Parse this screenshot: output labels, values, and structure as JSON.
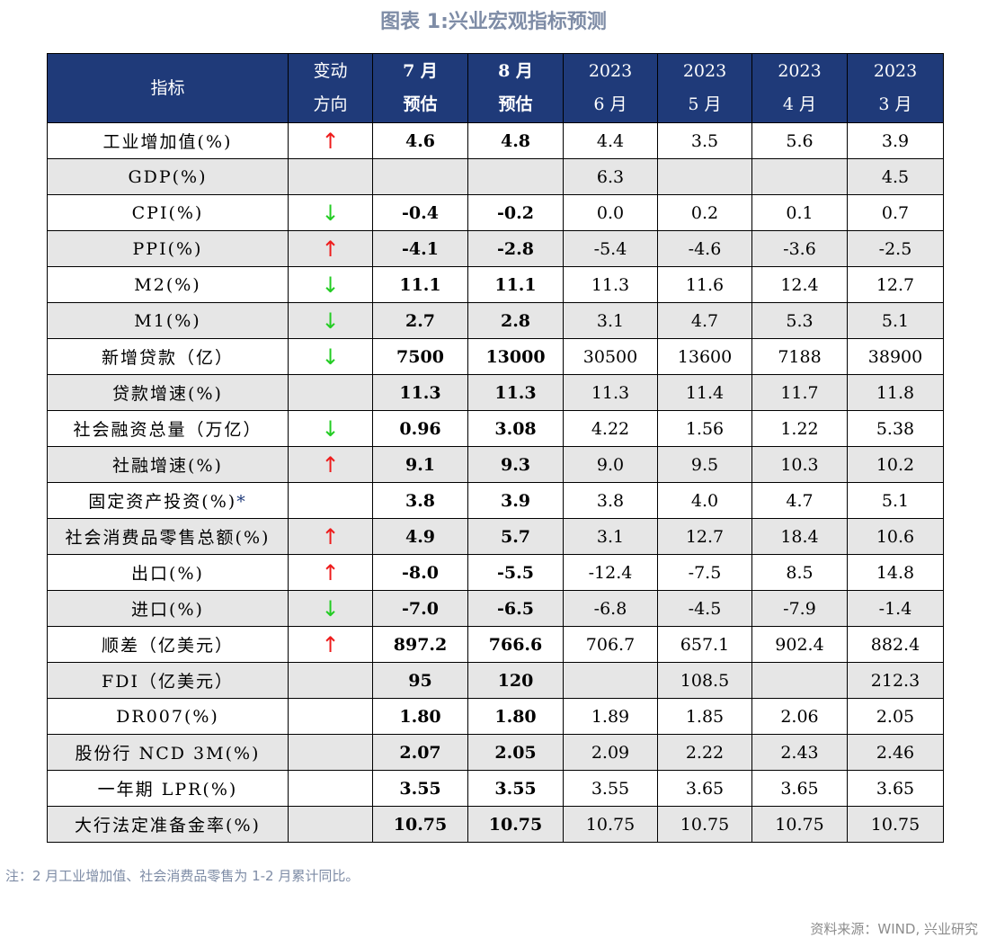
{
  "title": "图表 1:兴业宏观指标预测",
  "header": {
    "indicator": "指标",
    "change": [
      "变动",
      "方向"
    ],
    "jul_est": [
      "7 月",
      "预估"
    ],
    "aug_est": [
      "8 月",
      "预估"
    ],
    "jun_2023": [
      "2023",
      "6 月"
    ],
    "may_2023": [
      "2023",
      "5 月"
    ],
    "apr_2023": [
      "2023",
      "4 月"
    ],
    "mar_2023": [
      "2023",
      "3 月"
    ]
  },
  "colors": {
    "header_bg": "#1f3a79",
    "up_arrow": "#ee1c1c",
    "down_arrow": "#22cc22",
    "alt_row": "#e6e6e6"
  },
  "rows": [
    {
      "name": "工业增加值(%)",
      "dir": "up",
      "arrow": "↑",
      "jul": "4.6",
      "aug": "4.8",
      "jun": "4.4",
      "may": "3.5",
      "apr": "5.6",
      "mar": "3.9"
    },
    {
      "name": "GDP(%)",
      "dir": "",
      "arrow": "",
      "jul": "",
      "aug": "",
      "jun": "6.3",
      "may": "",
      "apr": "",
      "mar": "4.5"
    },
    {
      "name": "CPI(%)",
      "dir": "down",
      "arrow": "↓",
      "jul": "-0.4",
      "aug": "-0.2",
      "jun": "0.0",
      "may": "0.2",
      "apr": "0.1",
      "mar": "0.7"
    },
    {
      "name": "PPI(%)",
      "dir": "up",
      "arrow": "↑",
      "jul": "-4.1",
      "aug": "-2.8",
      "jun": "-5.4",
      "may": "-4.6",
      "apr": "-3.6",
      "mar": "-2.5"
    },
    {
      "name": "M2(%)",
      "dir": "down",
      "arrow": "↓",
      "jul": "11.1",
      "aug": "11.1",
      "jun": "11.3",
      "may": "11.6",
      "apr": "12.4",
      "mar": "12.7"
    },
    {
      "name": "M1(%)",
      "dir": "down",
      "arrow": "↓",
      "jul": "2.7",
      "aug": "2.8",
      "jun": "3.1",
      "may": "4.7",
      "apr": "5.3",
      "mar": "5.1"
    },
    {
      "name": "新增贷款（亿）",
      "dir": "down",
      "arrow": "↓",
      "jul": "7500",
      "aug": "13000",
      "jun": "30500",
      "may": "13600",
      "apr": "7188",
      "mar": "38900"
    },
    {
      "name": "贷款增速(%)",
      "dir": "",
      "arrow": "",
      "jul": "11.3",
      "aug": "11.3",
      "jun": "11.3",
      "may": "11.4",
      "apr": "11.7",
      "mar": "11.8"
    },
    {
      "name": "社会融资总量（万亿）",
      "dir": "down",
      "arrow": "↓",
      "jul": "0.96",
      "aug": "3.08",
      "jun": "4.22",
      "may": "1.56",
      "apr": "1.22",
      "mar": "5.38"
    },
    {
      "name": "社融增速(%)",
      "dir": "up",
      "arrow": "↑",
      "jul": "9.1",
      "aug": "9.3",
      "jun": "9.0",
      "may": "9.5",
      "apr": "10.3",
      "mar": "10.2"
    },
    {
      "name": "固定资产投资(%)",
      "note": "*",
      "dir": "",
      "arrow": "",
      "jul": "3.8",
      "aug": "3.9",
      "jun": "3.8",
      "may": "4.0",
      "apr": "4.7",
      "mar": "5.1"
    },
    {
      "name": "社会消费品零售总额(%)",
      "dir": "up",
      "arrow": "↑",
      "jul": "4.9",
      "aug": "5.7",
      "jun": "3.1",
      "may": "12.7",
      "apr": "18.4",
      "mar": "10.6"
    },
    {
      "name": "出口(%)",
      "dir": "up",
      "arrow": "↑",
      "jul": "-8.0",
      "aug": "-5.5",
      "jun": "-12.4",
      "may": "-7.5",
      "apr": "8.5",
      "mar": "14.8"
    },
    {
      "name": "进口(%)",
      "dir": "down",
      "arrow": "↓",
      "jul": "-7.0",
      "aug": "-6.5",
      "jun": "-6.8",
      "may": "-4.5",
      "apr": "-7.9",
      "mar": "-1.4"
    },
    {
      "name": "顺差（亿美元）",
      "dir": "up",
      "arrow": "↑",
      "jul": "897.2",
      "aug": "766.6",
      "jun": "706.7",
      "may": "657.1",
      "apr": "902.4",
      "mar": "882.4"
    },
    {
      "name": "FDI（亿美元）",
      "dir": "",
      "arrow": "",
      "jul": "95",
      "aug": "120",
      "jun": "",
      "may": "108.5",
      "apr": "",
      "mar": "212.3"
    },
    {
      "name": "DR007(%)",
      "dir": "",
      "arrow": "",
      "jul": "1.80",
      "aug": "1.80",
      "jun": "1.89",
      "may": "1.85",
      "apr": "2.06",
      "mar": "2.05"
    },
    {
      "name": "股份行 NCD 3M(%)",
      "dir": "",
      "arrow": "",
      "jul": "2.07",
      "aug": "2.05",
      "jun": "2.09",
      "may": "2.22",
      "apr": "2.43",
      "mar": "2.46"
    },
    {
      "name": "一年期 LPR(%)",
      "dir": "",
      "arrow": "",
      "jul": "3.55",
      "aug": "3.55",
      "jun": "3.55",
      "may": "3.65",
      "apr": "3.65",
      "mar": "3.65"
    },
    {
      "name": "大行法定准备金率(%)",
      "dir": "",
      "arrow": "",
      "jul": "10.75",
      "aug": "10.75",
      "jun": "10.75",
      "may": "10.75",
      "apr": "10.75",
      "mar": "10.75"
    }
  ],
  "note": "注：2 月工业增加值、社会消费品零售为 1-2 月累计同比。",
  "source": "资料来源：WIND, 兴业研究"
}
